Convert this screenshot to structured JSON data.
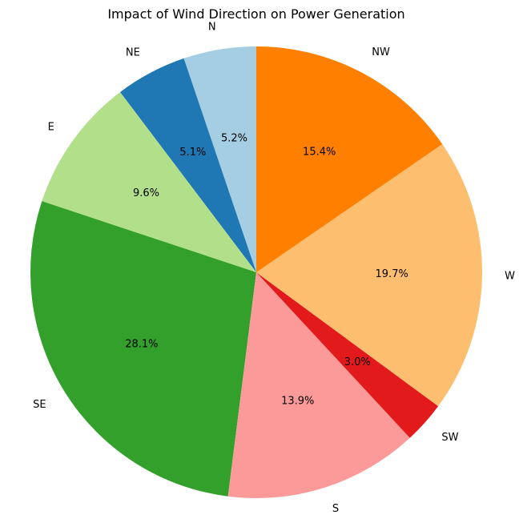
{
  "chart_data": {
    "type": "pie",
    "title": "Impact of Wind Direction on Power Generation",
    "start_angle_deg": 90,
    "direction": "counterclockwise",
    "legend": "none",
    "grid": false,
    "slices": [
      {
        "label": "N",
        "value": 5.2,
        "pct_label": "5.2%",
        "color": "#a6cee3"
      },
      {
        "label": "NE",
        "value": 5.1,
        "pct_label": "5.1%",
        "color": "#1f78b4"
      },
      {
        "label": "E",
        "value": 9.6,
        "pct_label": "9.6%",
        "color": "#b2df8a"
      },
      {
        "label": "SE",
        "value": 28.1,
        "pct_label": "28.1%",
        "color": "#33a02c"
      },
      {
        "label": "S",
        "value": 13.9,
        "pct_label": "13.9%",
        "color": "#fb9a99"
      },
      {
        "label": "SW",
        "value": 3.0,
        "pct_label": "3.0%",
        "color": "#e31a1c"
      },
      {
        "label": "W",
        "value": 19.7,
        "pct_label": "19.7%",
        "color": "#fdbf6f"
      },
      {
        "label": "NW",
        "value": 15.4,
        "pct_label": "15.4%",
        "color": "#ff7f00"
      }
    ]
  }
}
